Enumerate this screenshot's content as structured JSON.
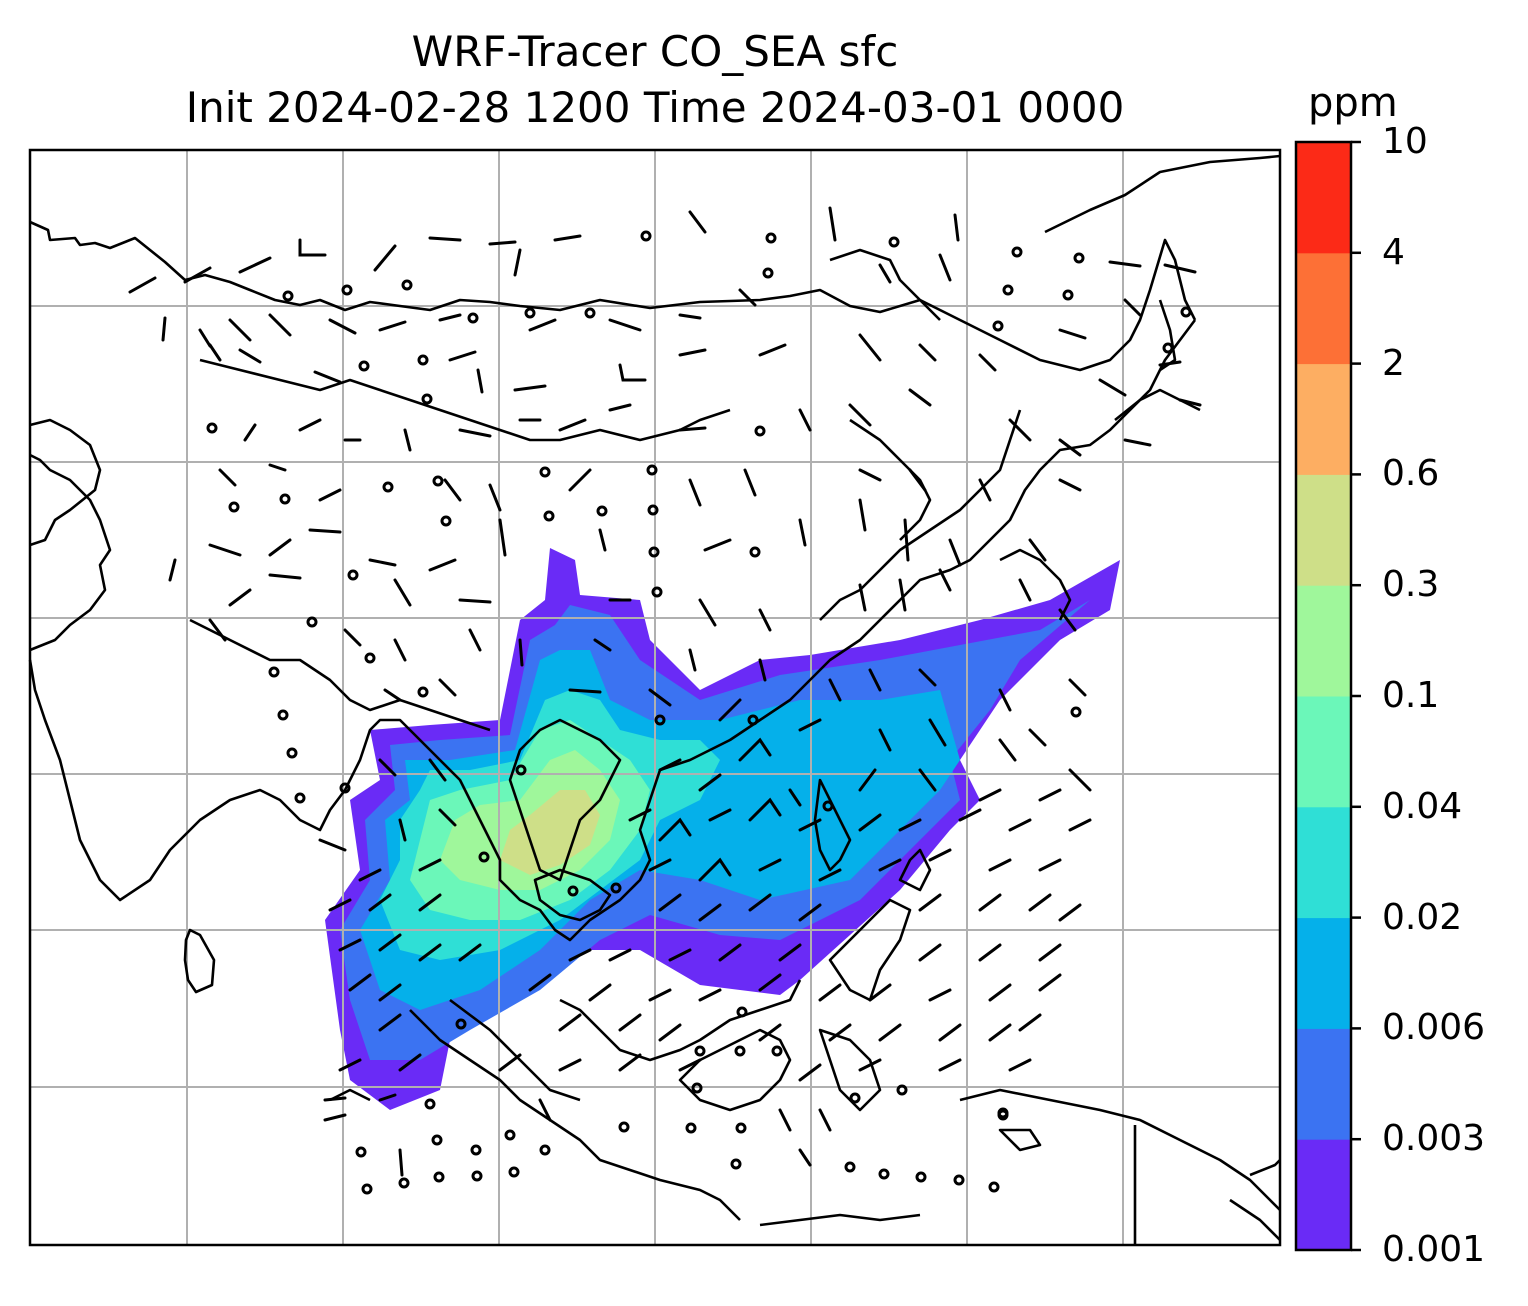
{
  "title": {
    "line1": "WRF-Tracer CO_SEA sfc",
    "line2": "Init 2024-02-28 1200 Time 2024-03-01 0000"
  },
  "colorbar": {
    "unit": "ppm",
    "ticks": [
      "0.001",
      "0.003",
      "0.006",
      "0.02",
      "0.04",
      "0.1",
      "0.3",
      "0.6",
      "2",
      "4",
      "10"
    ],
    "colors": [
      "#6a2bf6",
      "#3b73f2",
      "#05b0ea",
      "#2fdfd6",
      "#6bf7b9",
      "#9ff79b",
      "#cedf88",
      "#fdae62",
      "#fd7036",
      "#fc2a17"
    ]
  },
  "map": {
    "coastline_color": "#000000",
    "gridline_color": "#b0b0b0",
    "calm_symbol": "circle",
    "wind_symbol": "barb"
  }
}
